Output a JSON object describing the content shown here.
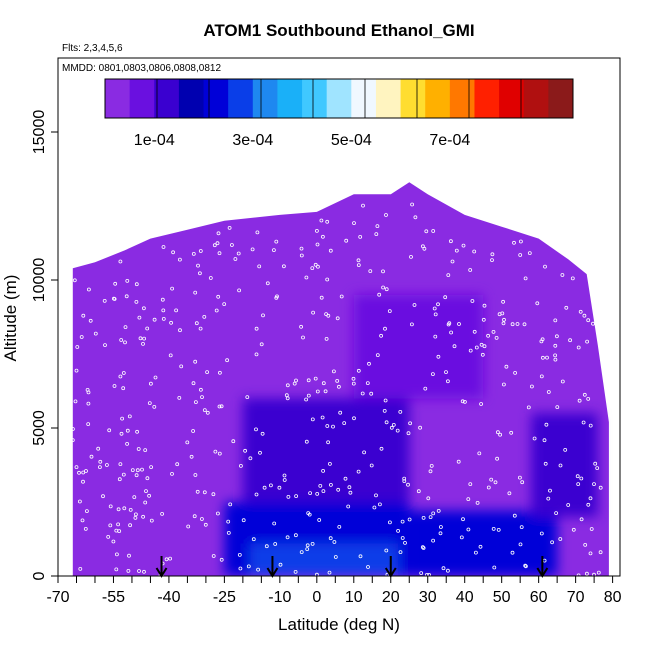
{
  "chart_data": {
    "type": "heatmap",
    "title": "ATOM1 Southbound Ethanol_GMI",
    "annotations": [
      "Flts: 2,3,4,5,6",
      "MMDD: 0801,0803,0806,0808,0812"
    ],
    "xlabel": "Latitude (deg N)",
    "ylabel": "Altitude (m)",
    "xlim": [
      -70,
      82
    ],
    "ylim": [
      0,
      17500
    ],
    "xticks": [
      -70,
      -55,
      -40,
      -25,
      -10,
      0,
      10,
      20,
      30,
      40,
      50,
      60,
      70,
      80
    ],
    "xtick_labels": [
      "-70",
      "-55",
      "-40",
      "-25",
      "-10",
      "0",
      "10",
      "20",
      "30",
      "40",
      "50",
      "60",
      "70",
      "80"
    ],
    "yticks": [
      0,
      5000,
      10000,
      15000
    ],
    "ytick_labels": [
      "0",
      "5000",
      "10000",
      "15000"
    ],
    "colorbar": {
      "min": 0,
      "max": 0.00095,
      "tick_values": [
        0.0001,
        0.0003,
        0.0005,
        0.0007
      ],
      "tick_labels": [
        "1e-04",
        "3e-04",
        "5e-04",
        "7e-04"
      ],
      "colors": [
        "#8a2be2",
        "#6a10e0",
        "#3a00d0",
        "#0000b0",
        "#0000d8",
        "#0a3ee8",
        "#1e88f0",
        "#1ab0f8",
        "#40c8ff",
        "#a0e4ff",
        "#f0f8ff",
        "#fff4c0",
        "#ffdd30",
        "#ffb000",
        "#ff7800",
        "#ff2000",
        "#e00000",
        "#b01010",
        "#8b1a1a"
      ]
    },
    "surface_profile": [
      {
        "lat": -66,
        "top": 10400
      },
      {
        "lat": -60,
        "top": 10600
      },
      {
        "lat": -52,
        "top": 11000
      },
      {
        "lat": -45,
        "top": 11400
      },
      {
        "lat": -35,
        "top": 11700
      },
      {
        "lat": -25,
        "top": 12000
      },
      {
        "lat": -10,
        "top": 12200
      },
      {
        "lat": 0,
        "top": 12300
      },
      {
        "lat": 10,
        "top": 12900
      },
      {
        "lat": 20,
        "top": 12900
      },
      {
        "lat": 25,
        "top": 13300
      },
      {
        "lat": 30,
        "top": 12900
      },
      {
        "lat": 40,
        "top": 12200
      },
      {
        "lat": 50,
        "top": 11800
      },
      {
        "lat": 60,
        "top": 11400
      },
      {
        "lat": 68,
        "top": 10700
      },
      {
        "lat": 73,
        "top": 10200
      },
      {
        "lat": 76,
        "top": 7800
      },
      {
        "lat": 79,
        "top": 5200
      }
    ],
    "concentration_regions": [
      {
        "lat": [
          -25,
          25
        ],
        "alt": [
          0,
          2500
        ],
        "value": 0.00024
      },
      {
        "lat": [
          -18,
          22
        ],
        "alt": [
          0,
          1100
        ],
        "value": 0.00029
      },
      {
        "lat": [
          -20,
          25
        ],
        "alt": [
          2500,
          6000
        ],
        "value": 0.00012
      },
      {
        "lat": [
          25,
          65
        ],
        "alt": [
          0,
          2200
        ],
        "value": 0.0002
      },
      {
        "lat": [
          58,
          76
        ],
        "alt": [
          2000,
          5500
        ],
        "value": 0.00012
      },
      {
        "lat": [
          10,
          45
        ],
        "alt": [
          6000,
          9500
        ],
        "value": 7e-05
      }
    ],
    "sounding_arrows_lat": [
      -42,
      -12,
      20,
      61
    ]
  }
}
